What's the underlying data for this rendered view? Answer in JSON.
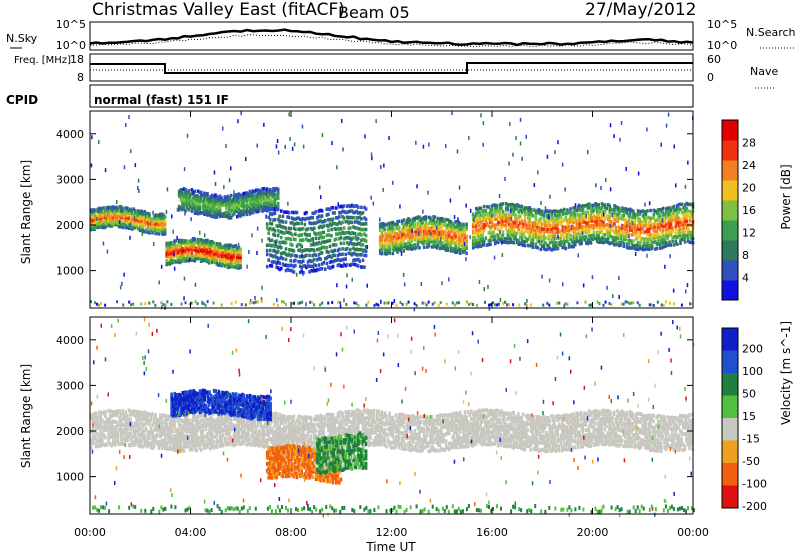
{
  "header": {
    "title": "Christmas Valley East (fitACF)",
    "beam": "Beam 05",
    "date": "27/May/2012"
  },
  "sky_panel": {
    "left_label": "N.Sky",
    "right_label": "N.Search",
    "left_ticks": [
      "10^5",
      "10^0"
    ],
    "right_ticks": [
      "10^5",
      "10^0"
    ]
  },
  "freq_panel": {
    "left_label": "Freq. [MHz]",
    "right_label": "Nave",
    "left_ticks": [
      "18",
      "8"
    ],
    "right_ticks": [
      "60",
      "0"
    ]
  },
  "cpid": {
    "label": "CPID",
    "value": "normal (fast) 151 IF"
  },
  "colors": {
    "power_scale": [
      "#1010e0",
      "#3050c0",
      "#2e7a5a",
      "#3aa050",
      "#7ec040",
      "#f0c020",
      "#f08020",
      "#f03010",
      "#e00000"
    ],
    "velocity_scale": [
      "#1020c8",
      "#2050d0",
      "#1f7f3f",
      "#52c040",
      "#c8c8c0",
      "#f0a020",
      "#f06010",
      "#e01010"
    ]
  },
  "chart_data": [
    {
      "type": "heatmap",
      "name": "power",
      "xlabel": "",
      "ylabel": "Slant Range [km]",
      "x_ticks": [
        "00:00",
        "04:00",
        "08:00",
        "12:00",
        "16:00",
        "20:00",
        "00:00"
      ],
      "xlim_hours": [
        0,
        24
      ],
      "ylim": [
        180,
        4500
      ],
      "y_ticks": [
        1000,
        2000,
        3000,
        4000
      ],
      "colorbar": {
        "label": "Power [dB]",
        "ticks": [
          4,
          8,
          12,
          16,
          20,
          24,
          28
        ],
        "range": [
          0,
          32
        ]
      },
      "features": [
        {
          "start_hour": 0,
          "end_hour": 3,
          "range_km": [
            1850,
            2300
          ],
          "peak_db": 24
        },
        {
          "start_hour": 3,
          "end_hour": 6,
          "range_km": [
            1100,
            1600
          ],
          "peak_db": 28
        },
        {
          "start_hour": 3.5,
          "end_hour": 7.5,
          "range_km": [
            2200,
            2700
          ],
          "peak_db": 14
        },
        {
          "start_hour": 7,
          "end_hour": 11,
          "range_km": [
            1000,
            2400
          ],
          "peak_db": 10
        },
        {
          "start_hour": 11.5,
          "end_hour": 15,
          "range_km": [
            1400,
            2100
          ],
          "peak_db": 24
        },
        {
          "start_hour": 15.2,
          "end_hour": 24,
          "range_km": [
            1500,
            2400
          ],
          "peak_db": 24
        }
      ]
    },
    {
      "type": "heatmap",
      "name": "velocity",
      "xlabel": "Time UT",
      "ylabel": "Slant Range [km]",
      "x_ticks": [
        "00:00",
        "04:00",
        "08:00",
        "12:00",
        "16:00",
        "20:00",
        "00:00"
      ],
      "xlim_hours": [
        0,
        24
      ],
      "ylim": [
        180,
        4500
      ],
      "y_ticks": [
        1000,
        2000,
        3000,
        4000
      ],
      "colorbar": {
        "label": "Velocity [m s^-1]",
        "ticks": [
          200,
          100,
          50,
          15,
          -15,
          -50,
          -100,
          -200
        ]
      },
      "features": [
        {
          "start_hour": 0,
          "end_hour": 24,
          "range_km": [
            1600,
            2400
          ],
          "velocity": 0
        },
        {
          "start_hour": 3.2,
          "end_hour": 7.2,
          "range_km": [
            2300,
            2800
          ],
          "velocity": 150
        },
        {
          "start_hour": 7,
          "end_hour": 10,
          "range_km": [
            900,
            1600
          ],
          "velocity": -60
        },
        {
          "start_hour": 9,
          "end_hour": 11,
          "range_km": [
            1100,
            1900
          ],
          "velocity": 40
        }
      ]
    }
  ]
}
